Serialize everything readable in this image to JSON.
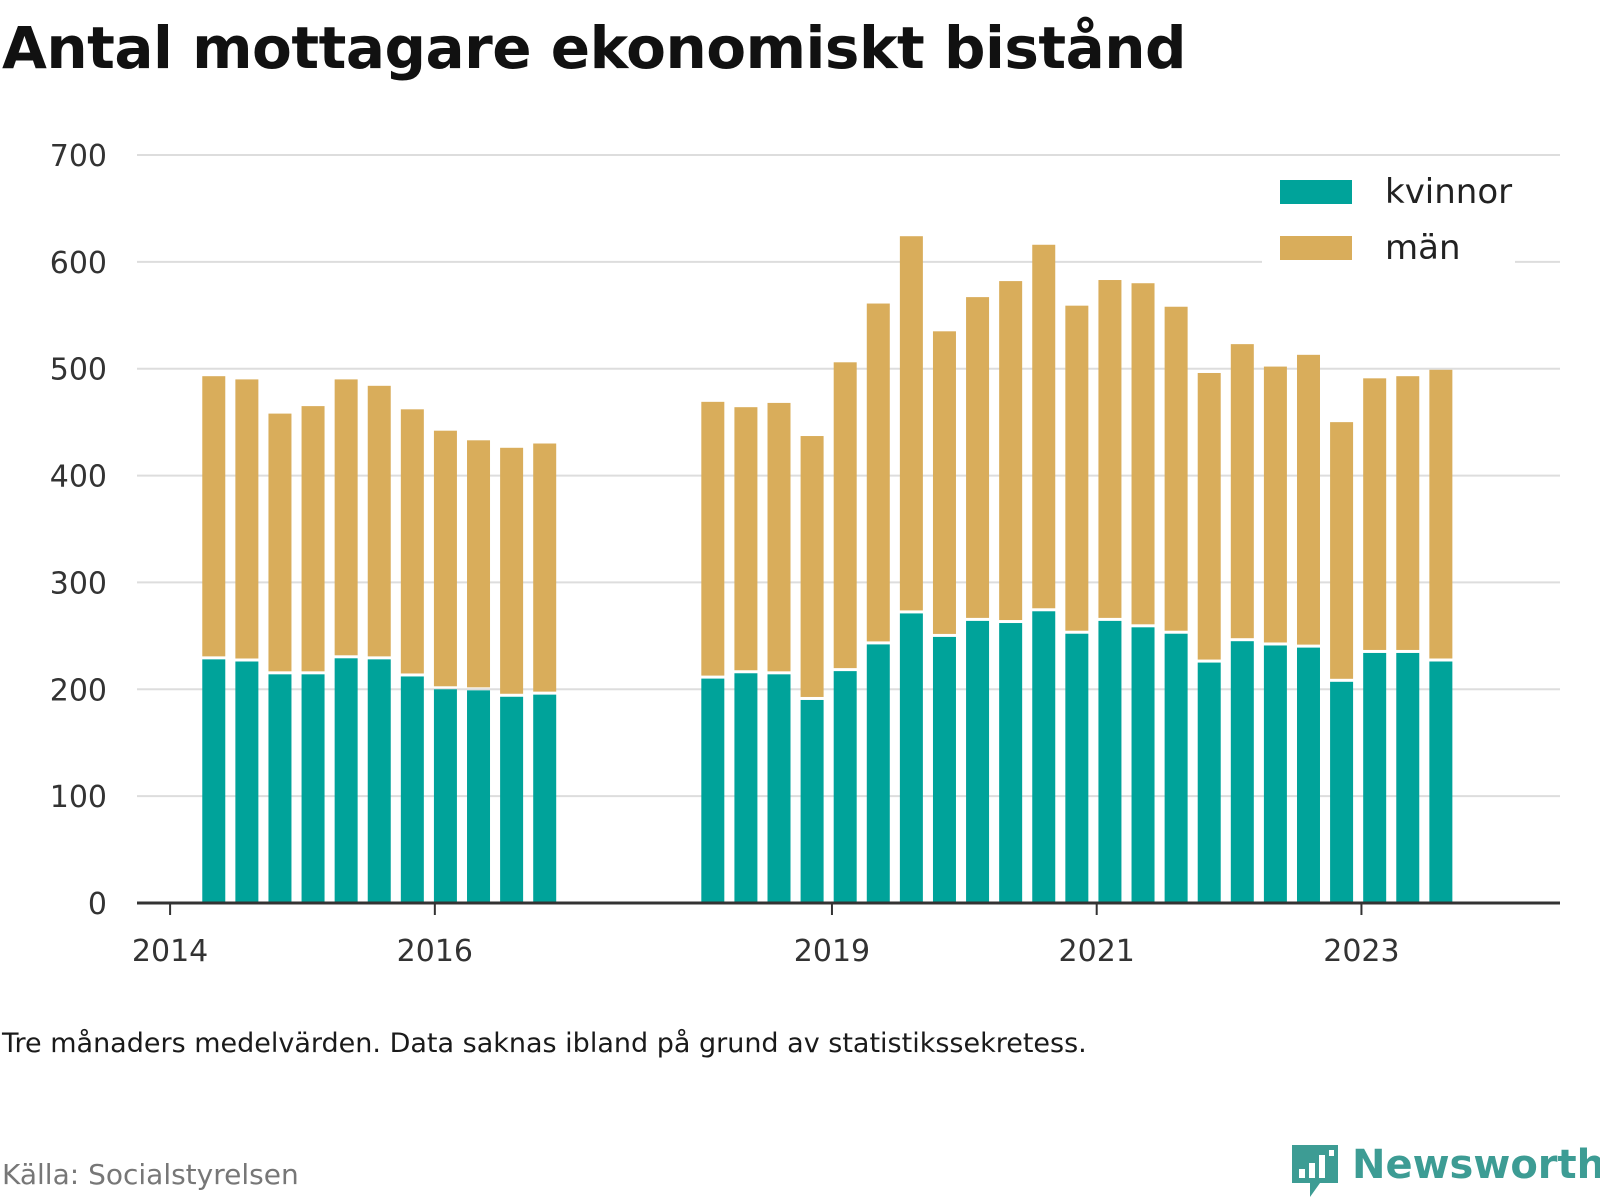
{
  "title": "Antal mottagare ekonomiskt bistånd",
  "note": "Tre månaders medelvärden. Data saknas ibland på grund av statistikssekretess.",
  "source": "Källa: Socialstyrelsen",
  "brand": {
    "name": "Newsworthy",
    "color": "#3d9c94"
  },
  "colors": {
    "kvinnor": "#00a39a",
    "man": "#d9ad5b",
    "grid": "#dddddd",
    "axis": "#333333"
  },
  "chart_data": {
    "type": "bar",
    "stacked": true,
    "x_start": 2013.75,
    "x_end": 2024.5,
    "ylim": [
      0,
      700
    ],
    "yticks": [
      0,
      100,
      200,
      300,
      400,
      500,
      600,
      700
    ],
    "xticks": [
      "2014",
      "2016",
      "2019",
      "2021",
      "2023"
    ],
    "xtick_values": [
      2014,
      2016,
      2019,
      2021,
      2023
    ],
    "legend_position": "top-right",
    "grid": true,
    "x": [
      2014.33,
      2014.58,
      2014.83,
      2015.08,
      2015.33,
      2015.58,
      2015.83,
      2016.08,
      2016.33,
      2016.58,
      2016.83,
      2018.1,
      2018.35,
      2018.6,
      2018.85,
      2019.1,
      2019.35,
      2019.6,
      2019.85,
      2020.1,
      2020.35,
      2020.6,
      2020.85,
      2021.1,
      2021.35,
      2021.6,
      2021.85,
      2022.1,
      2022.35,
      2022.6,
      2022.85,
      2023.1,
      2023.35,
      2023.6
    ],
    "series": [
      {
        "name": "kvinnor",
        "values": [
          228,
          226,
          214,
          214,
          229,
          228,
          212,
          200,
          199,
          193,
          195,
          210,
          215,
          214,
          190,
          217,
          242,
          271,
          249,
          264,
          262,
          273,
          252,
          264,
          258,
          252,
          225,
          245,
          241,
          239,
          207,
          234,
          234,
          226
        ]
      },
      {
        "name": "män",
        "values": [
          265,
          264,
          244,
          251,
          261,
          256,
          250,
          242,
          234,
          233,
          235,
          259,
          249,
          254,
          247,
          289,
          319,
          353,
          286,
          303,
          320,
          343,
          307,
          319,
          322,
          306,
          271,
          278,
          261,
          274,
          243,
          257,
          259,
          273
        ]
      }
    ]
  }
}
